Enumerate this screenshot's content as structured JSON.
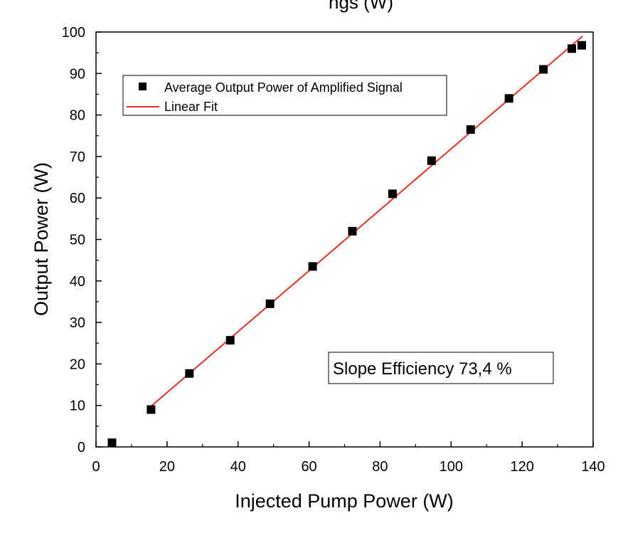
{
  "chart_data": {
    "type": "scatter",
    "title_fragment": "ngs (W)",
    "xlabel": "Injected Pump Power (W)",
    "ylabel": "Output Power (W)",
    "xlim": [
      0,
      140
    ],
    "ylim": [
      0,
      100
    ],
    "xticks": [
      0,
      20,
      40,
      60,
      80,
      100,
      120,
      140
    ],
    "yticks": [
      0,
      10,
      20,
      30,
      40,
      50,
      60,
      70,
      80,
      90,
      100
    ],
    "series": [
      {
        "name": "Average Output Power of Amplified Signal",
        "marker": "square",
        "color": "#000000",
        "x": [
          4.5,
          15.5,
          26.3,
          37.8,
          49.0,
          61.0,
          72.2,
          83.5,
          94.5,
          105.5,
          116.3,
          126.0,
          134.0,
          136.8
        ],
        "y": [
          1.0,
          9.0,
          17.7,
          25.7,
          34.5,
          43.5,
          52.0,
          61.0,
          69.0,
          76.5,
          84.0,
          91.0,
          96.0,
          96.8
        ]
      },
      {
        "name": "Linear Fit",
        "marker": "line",
        "color": "#e0302a",
        "x": [
          15.5,
          137.0
        ],
        "y": [
          9.8,
          99.0
        ]
      }
    ],
    "annotation": "Slope Efficiency 73,4 %",
    "legend_position": "top-left",
    "grid": false
  }
}
